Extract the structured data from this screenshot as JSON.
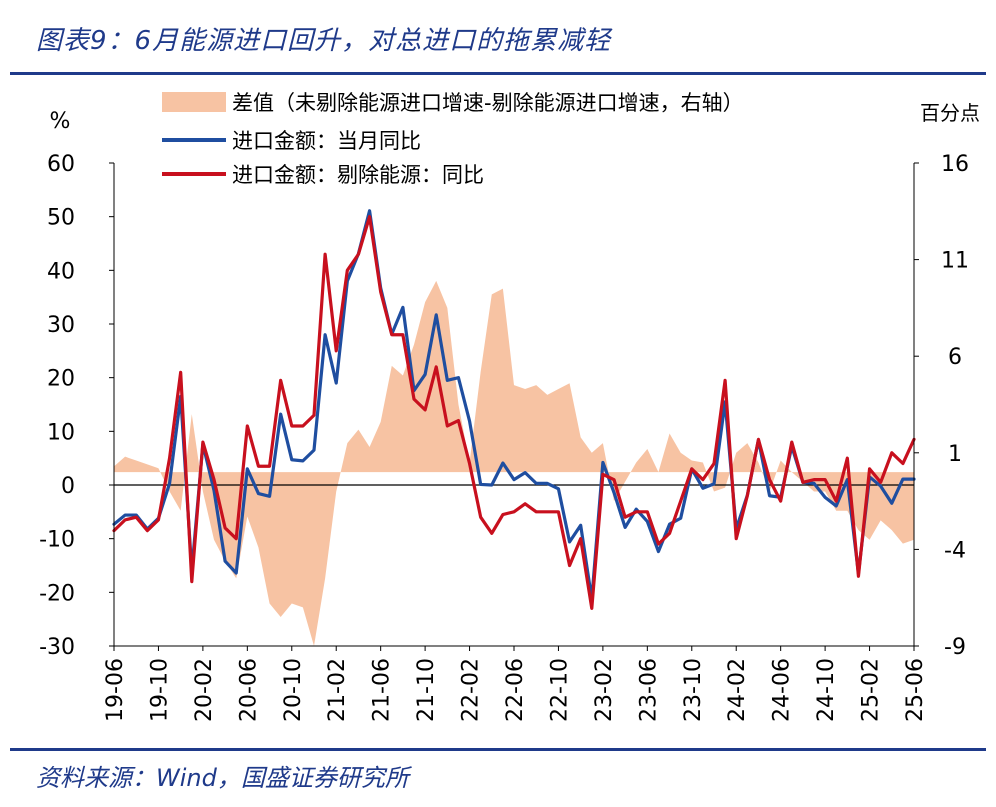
{
  "figure": {
    "title": "图表9：6月能源进口回升，对总进口的拖累减轻",
    "source": "资料来源：Wind，国盛证券研究所"
  },
  "colors": {
    "diff_fill": "#f7c3a3",
    "total_line": "#1f4ea0",
    "excl_line": "#c8101e",
    "accent": "#1f3a8a"
  },
  "chart_data": {
    "type": "line",
    "left_axis": {
      "unit_label": "%",
      "ylim": [
        -30,
        60
      ],
      "ticks": [
        60,
        50,
        40,
        30,
        20,
        10,
        0,
        -10,
        -20,
        -30
      ]
    },
    "right_axis": {
      "unit_label": "百分点",
      "ylim": [
        -9,
        16
      ],
      "ticks": [
        16,
        11,
        6,
        1,
        -4,
        -9
      ]
    },
    "x_tick_labels": [
      "19-06",
      "19-10",
      "20-02",
      "20-06",
      "20-10",
      "21-02",
      "21-06",
      "21-10",
      "22-02",
      "22-06",
      "22-10",
      "23-02",
      "23-06",
      "23-10",
      "24-02",
      "24-06",
      "24-10",
      "25-02",
      "25-06"
    ],
    "months": [
      "19-06",
      "19-07",
      "19-08",
      "19-09",
      "19-10",
      "19-11",
      "19-12",
      "20-01",
      "20-02",
      "20-03",
      "20-04",
      "20-05",
      "20-06",
      "20-07",
      "20-08",
      "20-09",
      "20-10",
      "20-11",
      "20-12",
      "21-01",
      "21-02",
      "21-03",
      "21-04",
      "21-05",
      "21-06",
      "21-07",
      "21-08",
      "21-09",
      "21-10",
      "21-11",
      "21-12",
      "22-01",
      "22-02",
      "22-03",
      "22-04",
      "22-05",
      "22-06",
      "22-07",
      "22-08",
      "22-09",
      "22-10",
      "22-11",
      "22-12",
      "23-01",
      "23-02",
      "23-03",
      "23-04",
      "23-05",
      "23-06",
      "23-07",
      "23-08",
      "23-09",
      "23-10",
      "23-11",
      "23-12",
      "24-01",
      "24-02",
      "24-03",
      "24-04",
      "24-05",
      "24-06",
      "24-07",
      "24-08",
      "24-09",
      "24-10",
      "24-11",
      "24-12",
      "25-01",
      "25-02",
      "25-03",
      "25-04",
      "25-05",
      "25-06"
    ],
    "series": [
      {
        "name": "差值（未剔除能源进口增速-剔除能源进口增速，右轴）",
        "type": "area",
        "axis": "right",
        "values": [
          0.3,
          0.8,
          0.6,
          0.4,
          0.2,
          -1.0,
          -2.0,
          3.0,
          -1.0,
          -3.5,
          -4.6,
          -5.5,
          -2.3,
          -3.9,
          -6.8,
          -7.5,
          -6.8,
          -7.0,
          -9.0,
          -5.5,
          -1.0,
          1.5,
          2.2,
          1.3,
          2.6,
          5.5,
          5.0,
          6.6,
          8.8,
          9.9,
          8.5,
          3.5,
          0.5,
          5.2,
          9.2,
          9.5,
          4.5,
          4.3,
          4.5,
          4.0,
          4.3,
          4.6,
          1.8,
          1.0,
          1.5,
          -1.5,
          -0.5,
          0.5,
          1.2,
          0.0,
          2.0,
          1.0,
          0.6,
          0.5,
          -1.0,
          -0.8,
          1.0,
          1.5,
          0.5,
          -1.0,
          0.6,
          0.0,
          -0.5,
          -1.0,
          -1.0,
          -2.0,
          -2.0,
          -3.0,
          -3.5,
          -2.5,
          -3.0,
          -3.7,
          -3.5
        ]
      },
      {
        "name": "进口金额：当月同比",
        "type": "line",
        "axis": "left",
        "values": [
          -7.3,
          -5.6,
          -5.6,
          -8.2,
          -6.2,
          0.3,
          16.5,
          -16.0,
          7.6,
          -1.0,
          -14.2,
          -16.4,
          3.0,
          -1.6,
          -2.1,
          13.2,
          4.7,
          4.5,
          6.5,
          28.0,
          19.0,
          38.0,
          43.1,
          51.1,
          36.7,
          28.1,
          33.1,
          17.6,
          20.6,
          31.7,
          19.5,
          20.0,
          11.9,
          0.1,
          0.0,
          4.1,
          1.0,
          2.3,
          0.3,
          0.3,
          -0.7,
          -10.6,
          -7.5,
          -21.3,
          4.2,
          -1.4,
          -7.9,
          -4.5,
          -6.8,
          -12.4,
          -7.3,
          -6.2,
          3.0,
          -0.6,
          0.2,
          15.5,
          -8.2,
          -1.9,
          8.4,
          -2.0,
          -2.3,
          7.2,
          0.5,
          0.3,
          -2.3,
          -3.9,
          1.0,
          -16.5,
          1.5,
          -0.2,
          -3.4,
          1.1,
          1.1
        ]
      },
      {
        "name": "进口金额：剔除能源：同比",
        "type": "line",
        "axis": "left",
        "values": [
          -8.5,
          -6.5,
          -6.0,
          -8.5,
          -6.5,
          5.0,
          21.0,
          -18.0,
          8.0,
          1.0,
          -8.0,
          -10.0,
          11.0,
          3.5,
          3.5,
          19.5,
          11.0,
          11.0,
          13.0,
          43.0,
          25.0,
          40.0,
          43.0,
          50.0,
          36.0,
          28.0,
          28.0,
          16.0,
          14.0,
          22.0,
          11.0,
          12.0,
          4.0,
          -6.0,
          -9.0,
          -5.5,
          -5.0,
          -3.5,
          -5.0,
          -5.0,
          -5.0,
          -15.0,
          -10.0,
          -23.0,
          2.0,
          1.0,
          -6.0,
          -5.0,
          -5.0,
          -11.0,
          -9.0,
          -3.0,
          3.0,
          1.0,
          4.0,
          19.5,
          -10.0,
          -2.0,
          8.5,
          1.0,
          -3.0,
          8.0,
          0.5,
          1.0,
          1.0,
          -3.0,
          5.0,
          -17.0,
          3.0,
          0.5,
          6.0,
          4.0,
          8.5
        ]
      }
    ]
  }
}
